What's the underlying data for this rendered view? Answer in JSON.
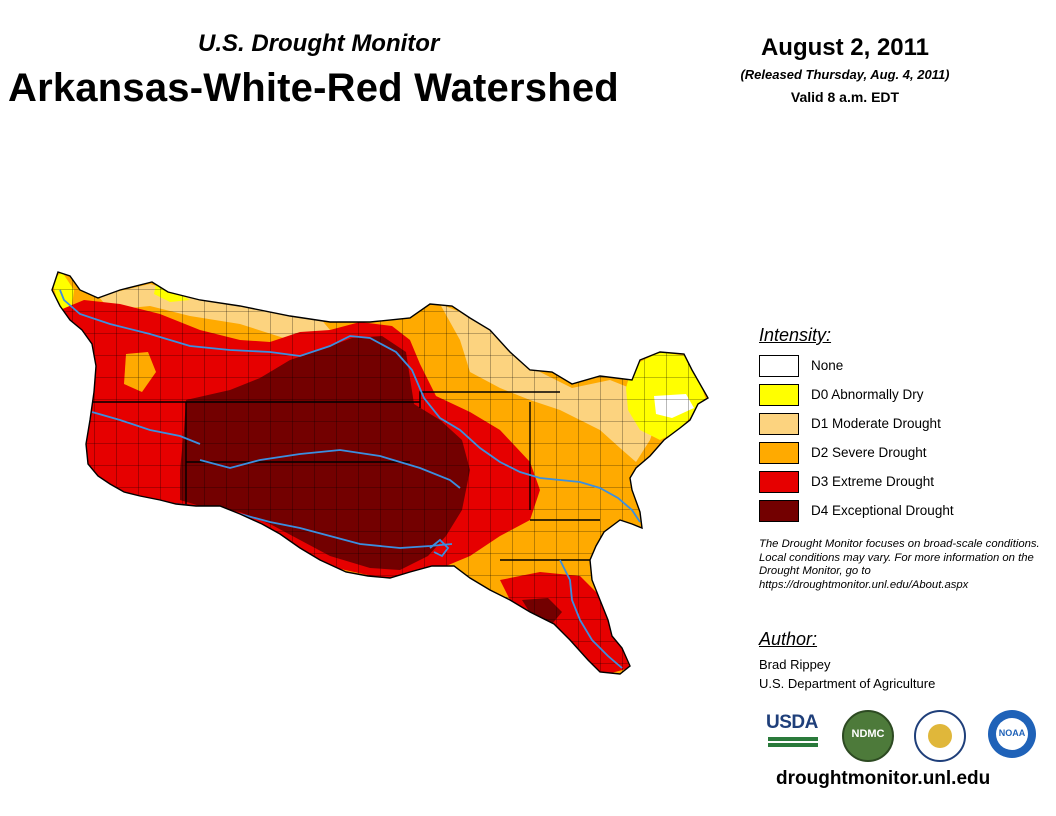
{
  "header": {
    "subtitle": "U.S. Drought Monitor",
    "title": "Arkansas-White-Red Watershed",
    "date": "August 2, 2011",
    "released": "(Released Thursday, Aug. 4, 2011)",
    "valid": "Valid 8 a.m. EDT"
  },
  "legend": {
    "title": "Intensity:",
    "items": [
      {
        "label": "None",
        "color": "#ffffff"
      },
      {
        "label": "D0 Abnormally Dry",
        "color": "#ffff00"
      },
      {
        "label": "D1 Moderate Drought",
        "color": "#fcd37f"
      },
      {
        "label": "D2 Severe Drought",
        "color": "#ffaa00"
      },
      {
        "label": "D3 Extreme Drought",
        "color": "#e60000"
      },
      {
        "label": "D4 Exceptional Drought",
        "color": "#730000"
      }
    ]
  },
  "note": "The Drought Monitor focuses on broad-scale conditions. Local conditions may vary. For more information on the Drought Monitor, go to https://droughtmonitor.unl.edu/About.aspx",
  "author": {
    "title": "Author:",
    "name": "Brad Rippey",
    "org": "U.S. Department of Agriculture"
  },
  "logos": {
    "usda": "USDA",
    "ndmc": "NDMC",
    "noaa": "NOAA",
    "seal_icon": "commerce-seal-icon"
  },
  "website": "droughtmonitor.unl.edu",
  "colors": {
    "river": "#3b8fe0",
    "county_line": "#000000"
  }
}
